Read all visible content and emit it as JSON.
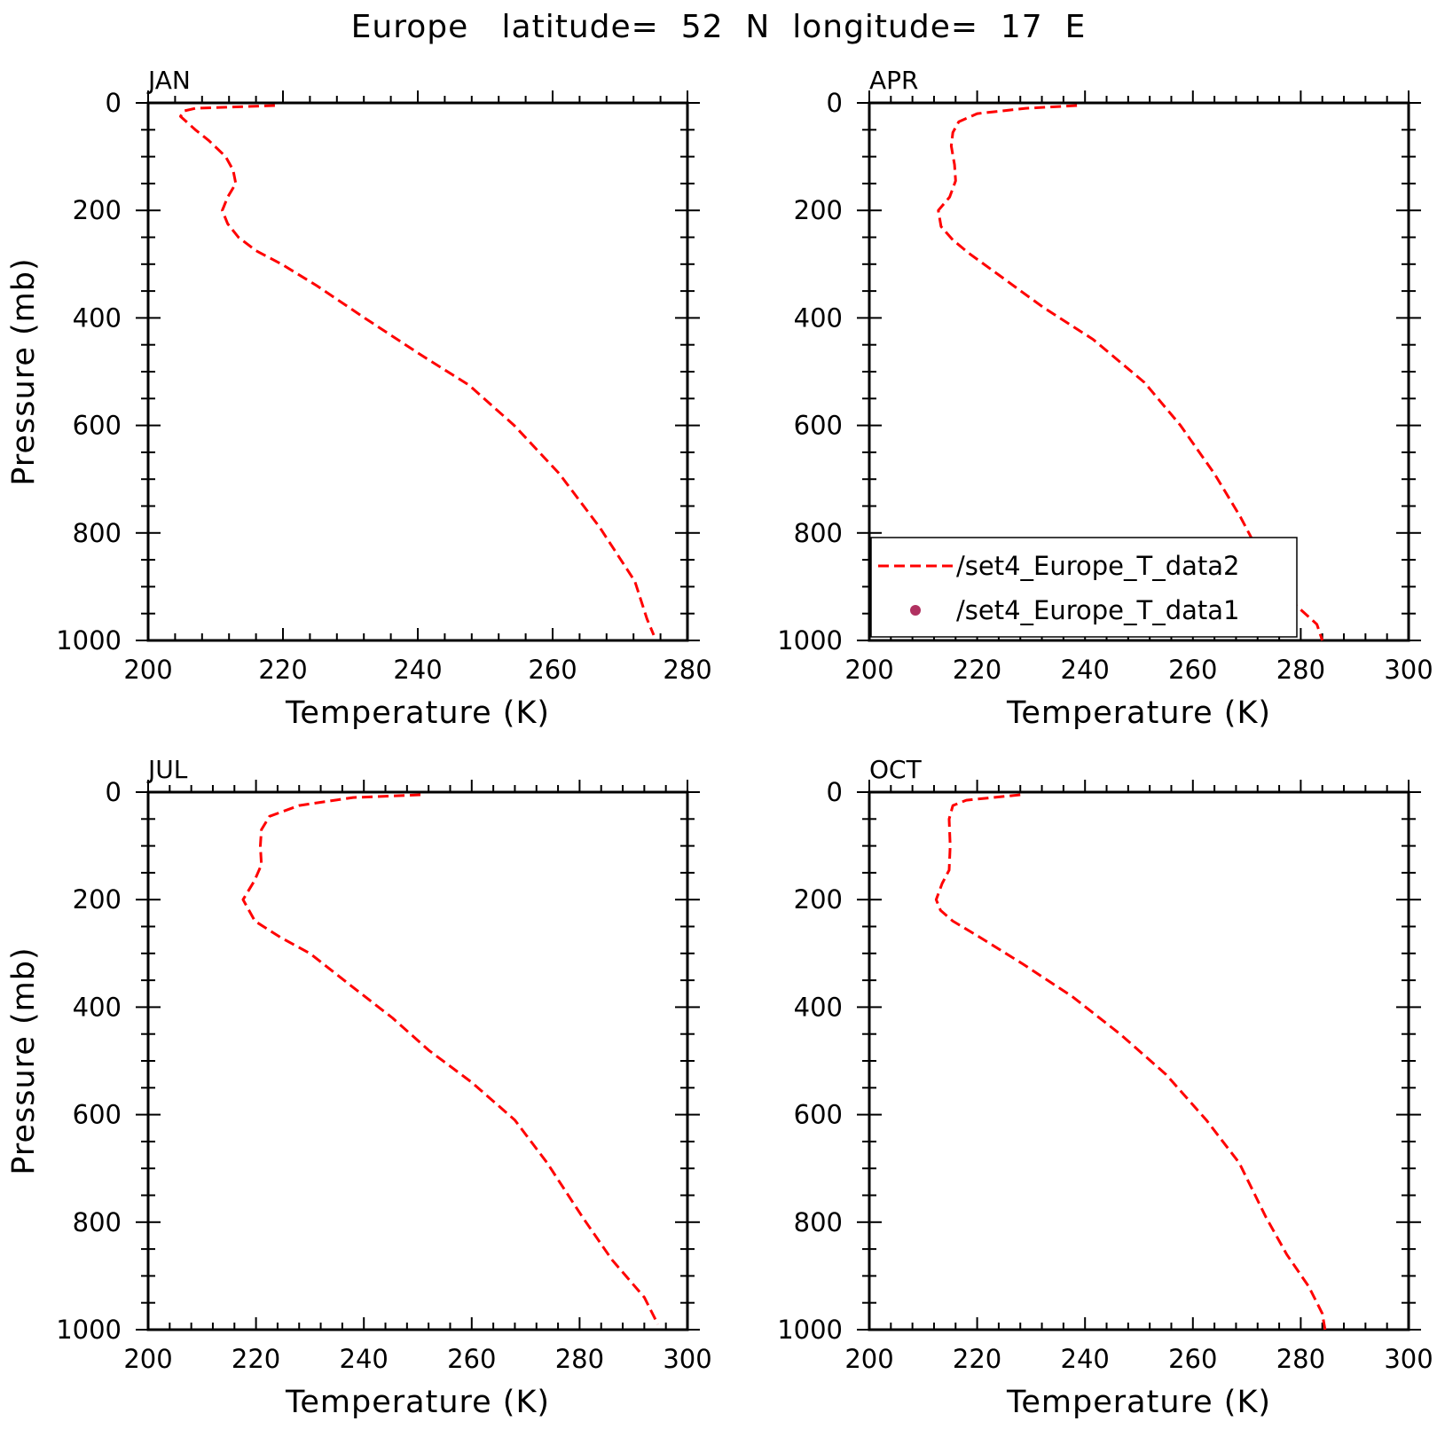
{
  "title": "Europe   latitude=  52  N  longitude=  17  E",
  "chart_data": [
    {
      "type": "line",
      "panel_title": "JAN",
      "xlabel": "Temperature (K)",
      "ylabel": "Pressure (mb)",
      "xlim": [
        200,
        280
      ],
      "ylim": [
        1000,
        0
      ],
      "x_ticks": [
        "200",
        "220",
        "240",
        "260",
        "280"
      ],
      "y_ticks": [
        "0",
        "200",
        "400",
        "600",
        "800",
        "1000"
      ],
      "series": [
        {
          "name": "/set4_Europe_T_data2",
          "color": "#ff0000",
          "style": "dashed",
          "points": [
            [
              218.8,
              5
            ],
            [
              207,
              10
            ],
            [
              205.3,
              15
            ],
            [
              204.8,
              25
            ],
            [
              207,
              50
            ],
            [
              209,
              70
            ],
            [
              211.5,
              100
            ],
            [
              212.6,
              125
            ],
            [
              213,
              150
            ],
            [
              211.8,
              175
            ],
            [
              211,
              200
            ],
            [
              211.8,
              225
            ],
            [
              213.4,
              250
            ],
            [
              216,
              275
            ],
            [
              219.8,
              300
            ],
            [
              225,
              340
            ],
            [
              232.1,
              400
            ],
            [
              240.6,
              470
            ],
            [
              247.6,
              525
            ],
            [
              254.3,
              600
            ],
            [
              261,
              690
            ],
            [
              267,
              790
            ],
            [
              272.2,
              890
            ],
            [
              274,
              960
            ],
            [
              275,
              990
            ]
          ]
        }
      ]
    },
    {
      "type": "line",
      "panel_title": "APR",
      "xlabel": "Temperature (K)",
      "ylabel": "",
      "xlim": [
        200,
        300
      ],
      "ylim": [
        1000,
        0
      ],
      "x_ticks": [
        "200",
        "220",
        "240",
        "260",
        "280",
        "300"
      ],
      "y_ticks": [
        "0",
        "200",
        "400",
        "600",
        "800",
        "1000"
      ],
      "series": [
        {
          "name": "/set4_Europe_T_data2",
          "color": "#ff0000",
          "style": "dashed",
          "points": [
            [
              238.5,
              5
            ],
            [
              229,
              10
            ],
            [
              220,
              20
            ],
            [
              216.6,
              35
            ],
            [
              215.5,
              55
            ],
            [
              215.2,
              80
            ],
            [
              215.8,
              115
            ],
            [
              216,
              145
            ],
            [
              214.9,
              175
            ],
            [
              212.8,
              200
            ],
            [
              213.3,
              230
            ],
            [
              215.5,
              255
            ],
            [
              218.5,
              280
            ],
            [
              224,
              320
            ],
            [
              232.2,
              380
            ],
            [
              241.5,
              440
            ],
            [
              251,
              520
            ],
            [
              257.7,
              600
            ],
            [
              264,
              690
            ],
            [
              268.8,
              770
            ],
            [
              273,
              850
            ],
            [
              277.5,
              920
            ],
            [
              283,
              970
            ],
            [
              284,
              1000
            ]
          ]
        },
        {
          "name": "/set4_Europe_T_data1",
          "color": "#b03060",
          "style": "markers",
          "points": []
        }
      ],
      "legend": "bottom-left"
    },
    {
      "type": "line",
      "panel_title": "JUL",
      "xlabel": "Temperature (K)",
      "ylabel": "Pressure (mb)",
      "xlim": [
        200,
        300
      ],
      "ylim": [
        1000,
        0
      ],
      "x_ticks": [
        "200",
        "220",
        "240",
        "260",
        "280",
        "300"
      ],
      "y_ticks": [
        "0",
        "200",
        "400",
        "600",
        "800",
        "1000"
      ],
      "series": [
        {
          "name": "/set4_Europe_T_data2",
          "color": "#ff0000",
          "style": "dashed",
          "points": [
            [
              250.5,
              5
            ],
            [
              238,
              10
            ],
            [
              228,
              25
            ],
            [
              222.5,
              45
            ],
            [
              221,
              70
            ],
            [
              220.8,
              100
            ],
            [
              221,
              135
            ],
            [
              219.7,
              165
            ],
            [
              217.6,
              200
            ],
            [
              219.8,
              240
            ],
            [
              224.5,
              270
            ],
            [
              230,
              300
            ],
            [
              237.6,
              360
            ],
            [
              245.3,
              420
            ],
            [
              252,
              480
            ],
            [
              260,
              540
            ],
            [
              268,
              610
            ],
            [
              274,
              690
            ],
            [
              280.5,
              790
            ],
            [
              286,
              870
            ],
            [
              292,
              940
            ],
            [
              294.5,
              990
            ]
          ]
        }
      ]
    },
    {
      "type": "line",
      "panel_title": "OCT",
      "xlabel": "Temperature (K)",
      "ylabel": "",
      "xlim": [
        200,
        300
      ],
      "ylim": [
        1000,
        0
      ],
      "x_ticks": [
        "200",
        "220",
        "240",
        "260",
        "280",
        "300"
      ],
      "y_ticks": [
        "0",
        "200",
        "400",
        "600",
        "800",
        "1000"
      ],
      "series": [
        {
          "name": "/set4_Europe_T_data2",
          "color": "#ff0000",
          "style": "dashed",
          "points": [
            [
              228,
              5
            ],
            [
              218,
              15
            ],
            [
              215.5,
              25
            ],
            [
              214.8,
              50
            ],
            [
              215,
              100
            ],
            [
              214.8,
              145
            ],
            [
              213.5,
              170
            ],
            [
              212.4,
              200
            ],
            [
              213.2,
              220
            ],
            [
              215.5,
              240
            ],
            [
              220.5,
              270
            ],
            [
              228.5,
              320
            ],
            [
              237.6,
              380
            ],
            [
              246.5,
              450
            ],
            [
              255,
              525
            ],
            [
              262.5,
              610
            ],
            [
              268.6,
              690
            ],
            [
              273.5,
              790
            ],
            [
              277.4,
              860
            ],
            [
              281.5,
              920
            ],
            [
              284,
              970
            ],
            [
              284.5,
              1000
            ]
          ]
        }
      ]
    }
  ]
}
